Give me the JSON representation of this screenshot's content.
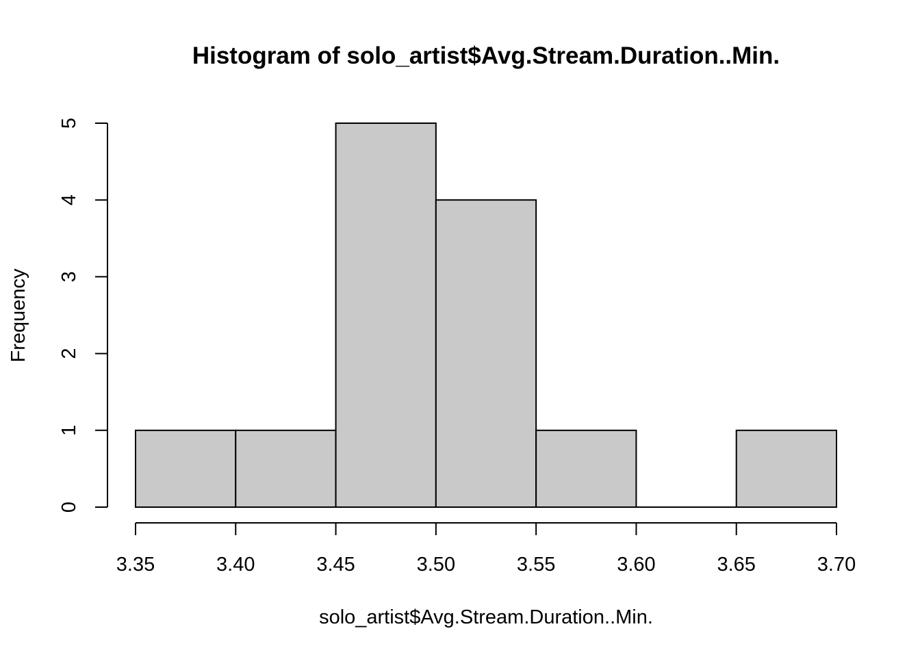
{
  "chart_data": {
    "type": "bar",
    "subtype": "histogram",
    "title": "Histogram of solo_artist$Avg.Stream.Duration..Min.",
    "xlabel": "solo_artist$Avg.Stream.Duration..Min.",
    "ylabel": "Frequency",
    "bins": [
      {
        "start": 3.35,
        "end": 3.4,
        "count": 1
      },
      {
        "start": 3.4,
        "end": 3.45,
        "count": 1
      },
      {
        "start": 3.45,
        "end": 3.5,
        "count": 5
      },
      {
        "start": 3.5,
        "end": 3.55,
        "count": 4
      },
      {
        "start": 3.55,
        "end": 3.6,
        "count": 1
      },
      {
        "start": 3.6,
        "end": 3.65,
        "count": 0
      },
      {
        "start": 3.65,
        "end": 3.7,
        "count": 1
      }
    ],
    "xlim": [
      3.35,
      3.7
    ],
    "ylim": [
      0,
      5
    ],
    "x_ticks": [
      3.35,
      3.4,
      3.45,
      3.5,
      3.55,
      3.6,
      3.65,
      3.7
    ],
    "x_tick_labels": [
      "3.35",
      "3.40",
      "3.45",
      "3.50",
      "3.55",
      "3.60",
      "3.65",
      "3.70"
    ],
    "y_ticks": [
      0,
      1,
      2,
      3,
      4,
      5
    ],
    "y_tick_labels": [
      "0",
      "1",
      "2",
      "3",
      "4",
      "5"
    ],
    "bar_fill": "#c9c9c9",
    "bar_stroke": "#000000",
    "grid": false
  }
}
